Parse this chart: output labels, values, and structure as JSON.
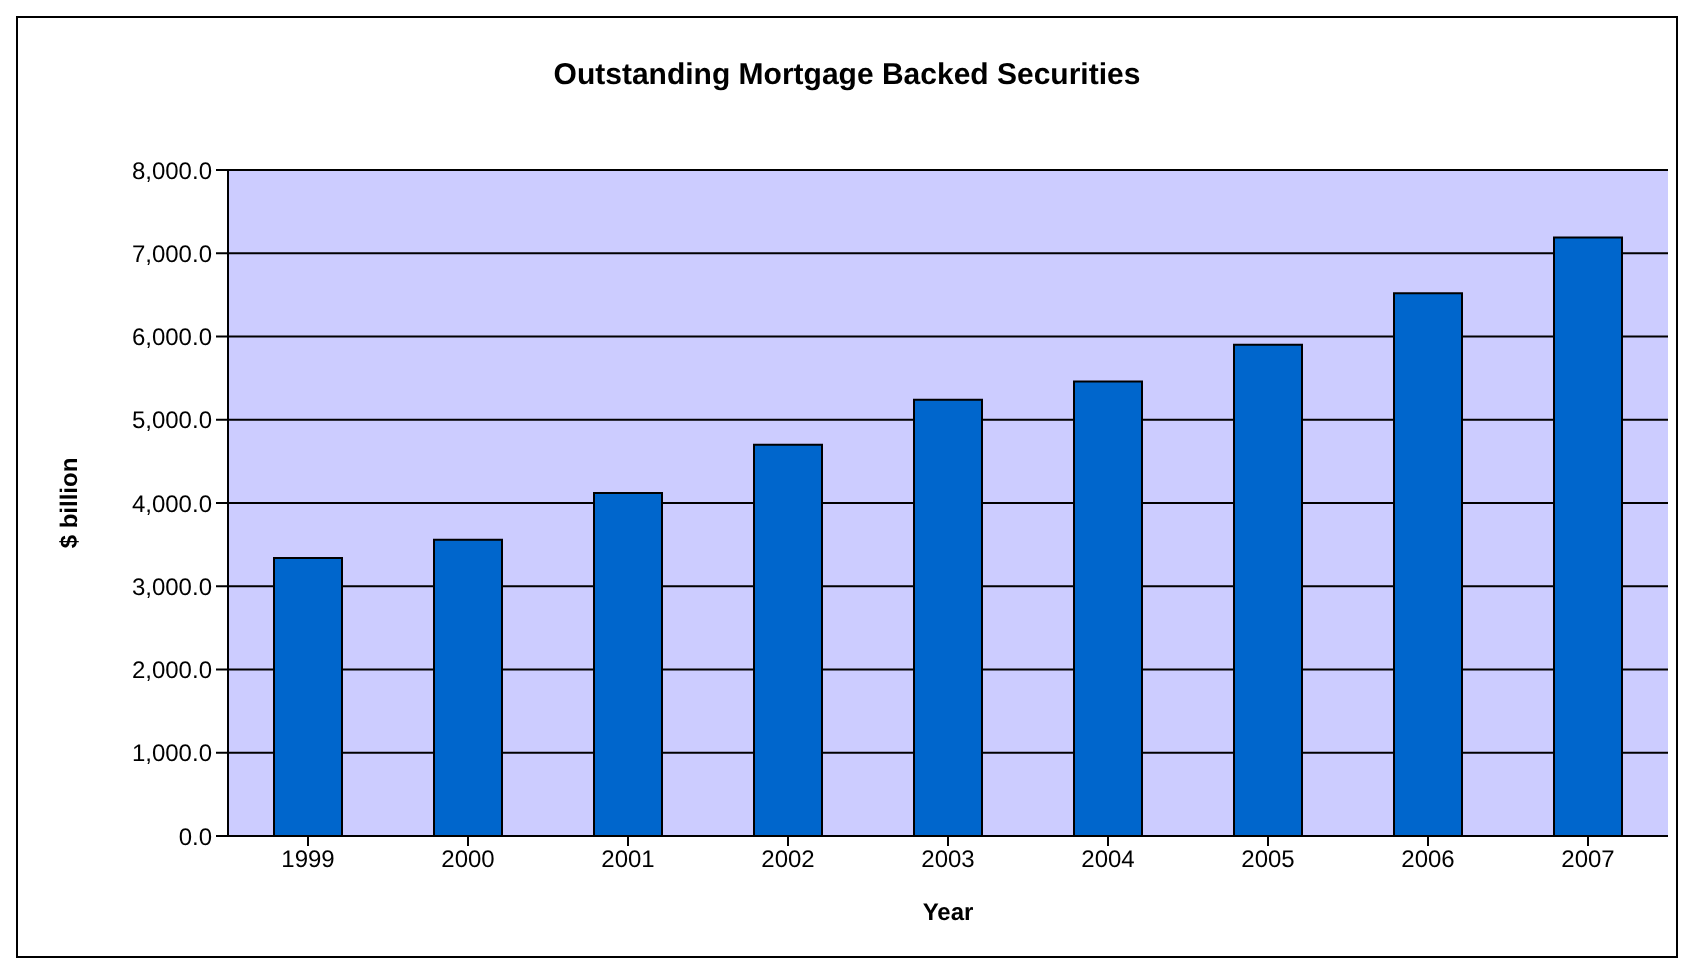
{
  "chart_data": {
    "type": "bar",
    "title": "Outstanding Mortgage Backed Securities",
    "xlabel": "Year",
    "ylabel": "$ billion",
    "categories": [
      "1999",
      "2000",
      "2001",
      "2002",
      "2003",
      "2004",
      "2005",
      "2006",
      "2007"
    ],
    "values": [
      3340,
      3560,
      4120,
      4700,
      5240,
      5460,
      5900,
      6520,
      7190
    ],
    "color": "#0066cc",
    "ylim": [
      0,
      8000
    ],
    "yticks": [
      {
        "value": 0,
        "label": "0.0"
      },
      {
        "value": 1000,
        "label": "1,000.0"
      },
      {
        "value": 2000,
        "label": "2,000.0"
      },
      {
        "value": 3000,
        "label": "3,000.0"
      },
      {
        "value": 4000,
        "label": "4,000.0"
      },
      {
        "value": 5000,
        "label": "5,000.0"
      },
      {
        "value": 6000,
        "label": "6,000.0"
      },
      {
        "value": 7000,
        "label": "7,000.0"
      },
      {
        "value": 8000,
        "label": "8,000.0"
      }
    ],
    "grid": "y",
    "legend": false
  }
}
